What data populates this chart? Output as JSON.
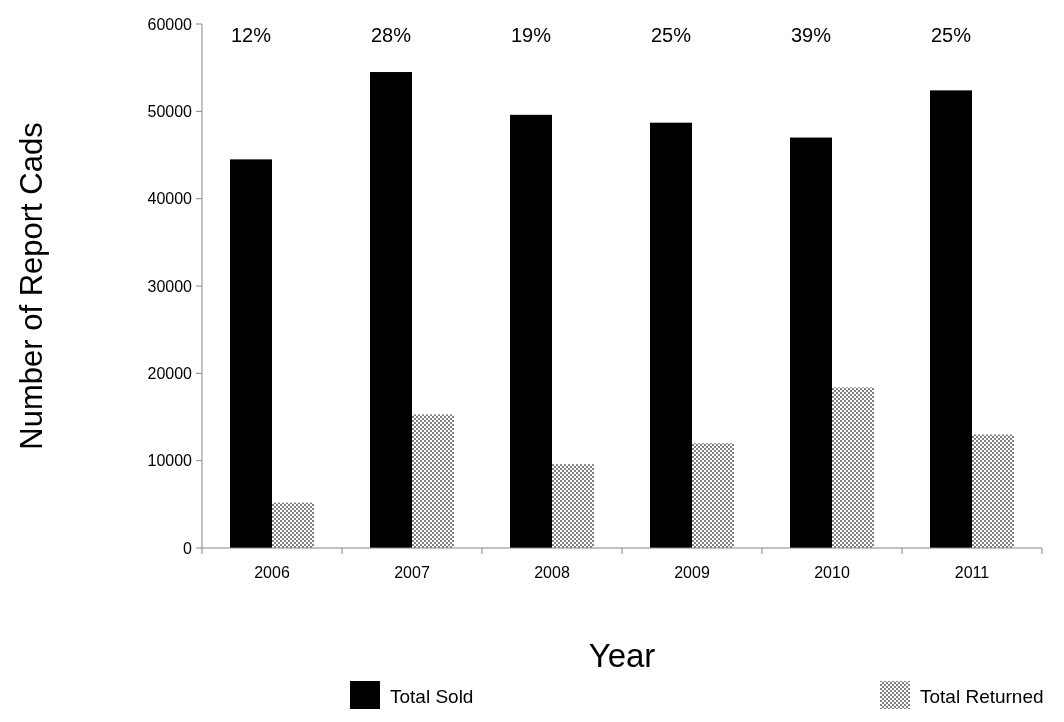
{
  "chart_data": {
    "type": "bar",
    "xlabel": "Year",
    "ylabel": "Number of Report Cads",
    "categories": [
      "2006",
      "2007",
      "2008",
      "2009",
      "2010",
      "2011"
    ],
    "series": [
      {
        "name": "Total Sold",
        "color": "#000000",
        "values": [
          44500,
          54500,
          49600,
          48700,
          47000,
          52400
        ]
      },
      {
        "name": "Total Returned",
        "color": "#808080",
        "values": [
          5200,
          15300,
          9600,
          12000,
          18400,
          13000
        ]
      }
    ],
    "ylim": [
      0,
      60000
    ],
    "yticks": [
      0,
      10000,
      20000,
      30000,
      40000,
      50000,
      60000
    ],
    "grid": false,
    "legend": "bottom",
    "annotations": [
      "12%",
      "28%",
      "19%",
      "25%",
      "39%",
      "25%"
    ]
  }
}
